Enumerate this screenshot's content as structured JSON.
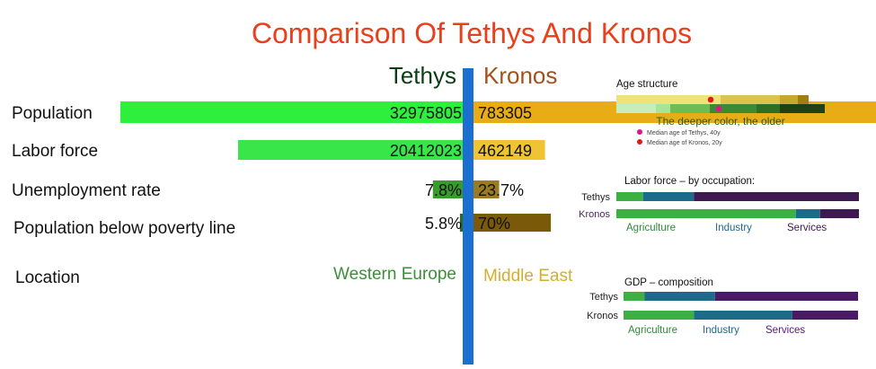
{
  "chart_data": {
    "type": "bar",
    "title": "Comparison Of Tethys And Kronos",
    "subtitle": "",
    "xlabel": "",
    "ylabel": "",
    "series": [
      {
        "name": "Tethys",
        "color": "#2ef03c",
        "label_color": "#0b3d12"
      },
      {
        "name": "Kronos",
        "color": "#e8ac14",
        "label_color": "#a3521c"
      }
    ],
    "categories": [
      {
        "label": "Population",
        "tethys": 32975805,
        "kronos": 783305,
        "tethys_label": "32975805",
        "kronos_label": "783305",
        "tethys_color": "#2ef03c",
        "kronos_color": "#e8ac14"
      },
      {
        "label": "Labor force",
        "tethys": 20412023,
        "kronos": 462149,
        "tethys_label": "20412023",
        "kronos_label": "462149",
        "tethys_color": "#38e64a",
        "kronos_color": "#efc430"
      },
      {
        "label": "Unemployment rate",
        "tethys": 7.8,
        "kronos": 23.7,
        "tethys_label": "7.8%",
        "kronos_label": "23.7%",
        "tethys_color": "#3a9a2e",
        "kronos_color": "#9a7a22"
      },
      {
        "label": "Population below poverty line",
        "tethys": 5.8,
        "kronos": 70,
        "tethys_label": "5.8%",
        "kronos_label": "70%",
        "tethys_color": "#2f6b22",
        "kronos_color": "#7a5a08"
      }
    ],
    "location": {
      "label": "Location",
      "tethys": "Western Europe",
      "kronos": "Middle East",
      "tethys_color": "#3c8f38",
      "kronos_color": "#d4ae2e"
    },
    "age_structure": {
      "title": "Age structure",
      "note": "The deeper color, the older",
      "colors": [
        "#c6eebc",
        "#a7e49b",
        "#6ebc58",
        "#3a8a36",
        "#2e6f28",
        "#1e4216"
      ],
      "kronos_colors": [
        "#f0e27a",
        "#f0e27a",
        "#dcc24e",
        "#dcc24e",
        "#c8a630",
        "#a67c12"
      ],
      "tethys_median_years": 40,
      "kronos_median_years": 20,
      "legend": [
        {
          "label": "Median age of Tethys, 40y",
          "color": "#e0158a"
        },
        {
          "label": "Median age of Kronos, 20y",
          "color": "#e01a16"
        }
      ]
    },
    "labor_by_occupation": {
      "title": "Labor force – by occupation:",
      "categories": [
        "Agriculture",
        "Industry",
        "Services"
      ],
      "colors": [
        "#3cb043",
        "#1e6a8a",
        "#3e1a50"
      ],
      "category_label_colors": [
        "#2e8b3a",
        "#1f6a8c",
        "#3e1a50"
      ],
      "rows": [
        {
          "name": "Tethys",
          "shares": [
            11,
            21,
            68
          ],
          "name_color": "#222222"
        },
        {
          "name": "Kronos",
          "shares": [
            74,
            10,
            16
          ],
          "name_color": "#4a2a5a"
        }
      ]
    },
    "gdp_composition": {
      "title": "GDP – composition",
      "categories": [
        "Agriculture",
        "Industry",
        "Services"
      ],
      "colors": [
        "#3cb043",
        "#1e6a8a",
        "#4b1a66"
      ],
      "category_label_colors": [
        "#2e8b3a",
        "#1f6a8c",
        "#5a1a7a"
      ],
      "rows": [
        {
          "name": "Tethys",
          "shares": [
            9,
            30,
            61
          ],
          "name_color": "#222222"
        },
        {
          "name": "Kronos",
          "shares": [
            30,
            42,
            28
          ],
          "name_color": "#222222"
        }
      ]
    },
    "colors": {
      "title": "#e8401c",
      "divider": "#1a6fd0"
    }
  }
}
